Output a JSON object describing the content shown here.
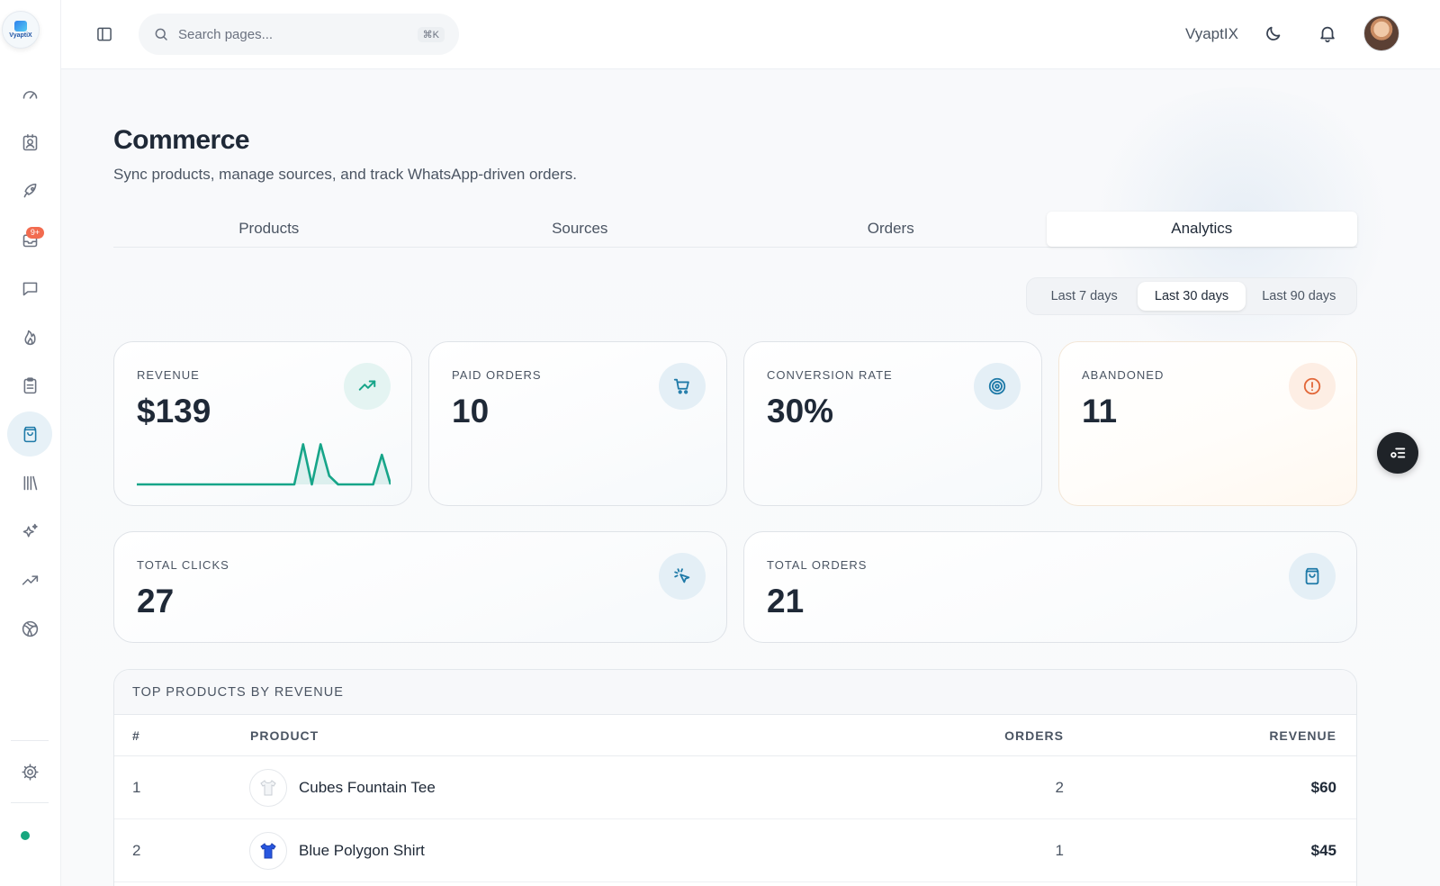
{
  "app": {
    "logo_text": "VyaptiX",
    "brand_name": "VyaptIX"
  },
  "sidebar": {
    "items": [
      {
        "name": "dashboard",
        "icon": "gauge-icon"
      },
      {
        "name": "contacts",
        "icon": "contact-card-icon"
      },
      {
        "name": "campaigns",
        "icon": "rocket-icon"
      },
      {
        "name": "inbox",
        "icon": "inbox-icon",
        "badge": "9+"
      },
      {
        "name": "chats",
        "icon": "chat-bubble-icon"
      },
      {
        "name": "hot-leads",
        "icon": "flame-icon"
      },
      {
        "name": "tasks",
        "icon": "clipboard-icon"
      },
      {
        "name": "commerce",
        "icon": "shopping-bag-icon",
        "active": true
      },
      {
        "name": "library",
        "icon": "library-icon"
      },
      {
        "name": "ai",
        "icon": "sparkles-icon"
      },
      {
        "name": "analytics",
        "icon": "trending-up-icon"
      },
      {
        "name": "integrations",
        "icon": "globe-icon"
      },
      {
        "name": "settings",
        "icon": "gear-icon"
      }
    ],
    "status_color": "#17a67e"
  },
  "header": {
    "search_placeholder": "Search pages...",
    "search_shortcut": "⌘K"
  },
  "page": {
    "title": "Commerce",
    "subtitle": "Sync products, manage sources, and track WhatsApp-driven orders."
  },
  "tabs": [
    {
      "label": "Products"
    },
    {
      "label": "Sources"
    },
    {
      "label": "Orders"
    },
    {
      "label": "Analytics",
      "active": true
    }
  ],
  "date_range": {
    "options": [
      "Last 7 days",
      "Last 30 days",
      "Last 90 days"
    ],
    "selected": "Last 30 days"
  },
  "stats": {
    "revenue": {
      "label": "REVENUE",
      "value": "$139",
      "icon": "trending-up-icon"
    },
    "paid_orders": {
      "label": "PAID ORDERS",
      "value": "10",
      "icon": "cart-icon"
    },
    "conversion_rate": {
      "label": "CONVERSION RATE",
      "value": "30%",
      "icon": "target-icon"
    },
    "abandoned": {
      "label": "ABANDONED",
      "value": "11",
      "icon": "alert-circle-icon"
    },
    "total_clicks": {
      "label": "TOTAL CLICKS",
      "value": "27",
      "icon": "cursor-click-icon"
    },
    "total_orders": {
      "label": "TOTAL ORDERS",
      "value": "21",
      "icon": "shopping-bag-icon"
    }
  },
  "revenue_sparkline": {
    "values": [
      0,
      0,
      0,
      0,
      0,
      0,
      0,
      0,
      0,
      0,
      0,
      0,
      0,
      0,
      0,
      0,
      0,
      0,
      0,
      0,
      0,
      0,
      0,
      0,
      0,
      0,
      0,
      0,
      0,
      0,
      0,
      0,
      0,
      0,
      0,
      0,
      0,
      0,
      0,
      0,
      0,
      0,
      0,
      0,
      0,
      0,
      0,
      0,
      0,
      0,
      0,
      0,
      0,
      0,
      0,
      0,
      0,
      0,
      0,
      0,
      0,
      0,
      0,
      0,
      0,
      0,
      0,
      0,
      0,
      0,
      0,
      0,
      0,
      0,
      0,
      0,
      0,
      0,
      0,
      0,
      0,
      0,
      0,
      0,
      0,
      0,
      0,
      0,
      0,
      0,
      0,
      0,
      0,
      0,
      0,
      0,
      0,
      0,
      0,
      0,
      0,
      0,
      0,
      0,
      0,
      0,
      0,
      0,
      0,
      0,
      0,
      0,
      0,
      0,
      0,
      0,
      0,
      0,
      0,
      0,
      0,
      0,
      0,
      0,
      0,
      0,
      0,
      0,
      0,
      0,
      0,
      0,
      0,
      0,
      0,
      0,
      0,
      0,
      0,
      0,
      0,
      0,
      0,
      0,
      0,
      0,
      0,
      0,
      0,
      0,
      0,
      0,
      0,
      0,
      0,
      0,
      0,
      0,
      0,
      0,
      0,
      0,
      0,
      0,
      0,
      0,
      0,
      0,
      0,
      0,
      0,
      0,
      0,
      0,
      0,
      0,
      0,
      0,
      0,
      0,
      0,
      0,
      0,
      0,
      0,
      0,
      0,
      0,
      0,
      0,
      0,
      0,
      0,
      0,
      0,
      0,
      0,
      0,
      0,
      0,
      0,
      0,
      0,
      0,
      0,
      0,
      0,
      0,
      0,
      0,
      0,
      0,
      0,
      0,
      0,
      0,
      0,
      0,
      0,
      0,
      0,
      0,
      0,
      0,
      0,
      0,
      0,
      0,
      0,
      0,
      0,
      0,
      0,
      0,
      0,
      0,
      0,
      0,
      0,
      0,
      0,
      0,
      0,
      0,
      0,
      0,
      0,
      0,
      0,
      0,
      0,
      0,
      0,
      0,
      0,
      0,
      0,
      0,
      0,
      0,
      0,
      0,
      0,
      0,
      0,
      0,
      0,
      0,
      0,
      0,
      0,
      0,
      0,
      0,
      0,
      0,
      0,
      0,
      0,
      0,
      0,
      0,
      0,
      0,
      0,
      0,
      0,
      0,
      0,
      0,
      0,
      0,
      0,
      0,
      0,
      0,
      0,
      0,
      0,
      0,
      0,
      0,
      0,
      0,
      0,
      0,
      0,
      0,
      0,
      0,
      0,
      0,
      0,
      0,
      0,
      0,
      0,
      0,
      0,
      0,
      0,
      0,
      0
    ],
    "points": [
      0,
      0,
      0,
      0,
      0,
      0,
      0,
      0,
      0,
      0,
      0,
      0,
      0,
      0,
      0,
      0,
      0,
      0,
      0,
      0.95,
      0,
      0.95,
      0.2,
      0,
      0,
      0,
      0,
      0,
      0.7,
      0
    ],
    "color": "#17a589"
  },
  "top_products": {
    "title": "TOP PRODUCTS BY REVENUE",
    "columns": [
      "#",
      "PRODUCT",
      "ORDERS",
      "REVENUE"
    ],
    "rows": [
      {
        "rank": "1",
        "product": "Cubes Fountain Tee",
        "orders": "2",
        "revenue": "$60",
        "thumb": "white-tshirt-icon"
      },
      {
        "rank": "2",
        "product": "Blue Polygon Shirt",
        "orders": "1",
        "revenue": "$45",
        "thumb": "blue-tshirt-icon"
      }
    ]
  },
  "colors": {
    "accent": "#1f7aa8",
    "success": "#17a589",
    "warning": "#e2683a",
    "badge": "#f26b4f"
  }
}
